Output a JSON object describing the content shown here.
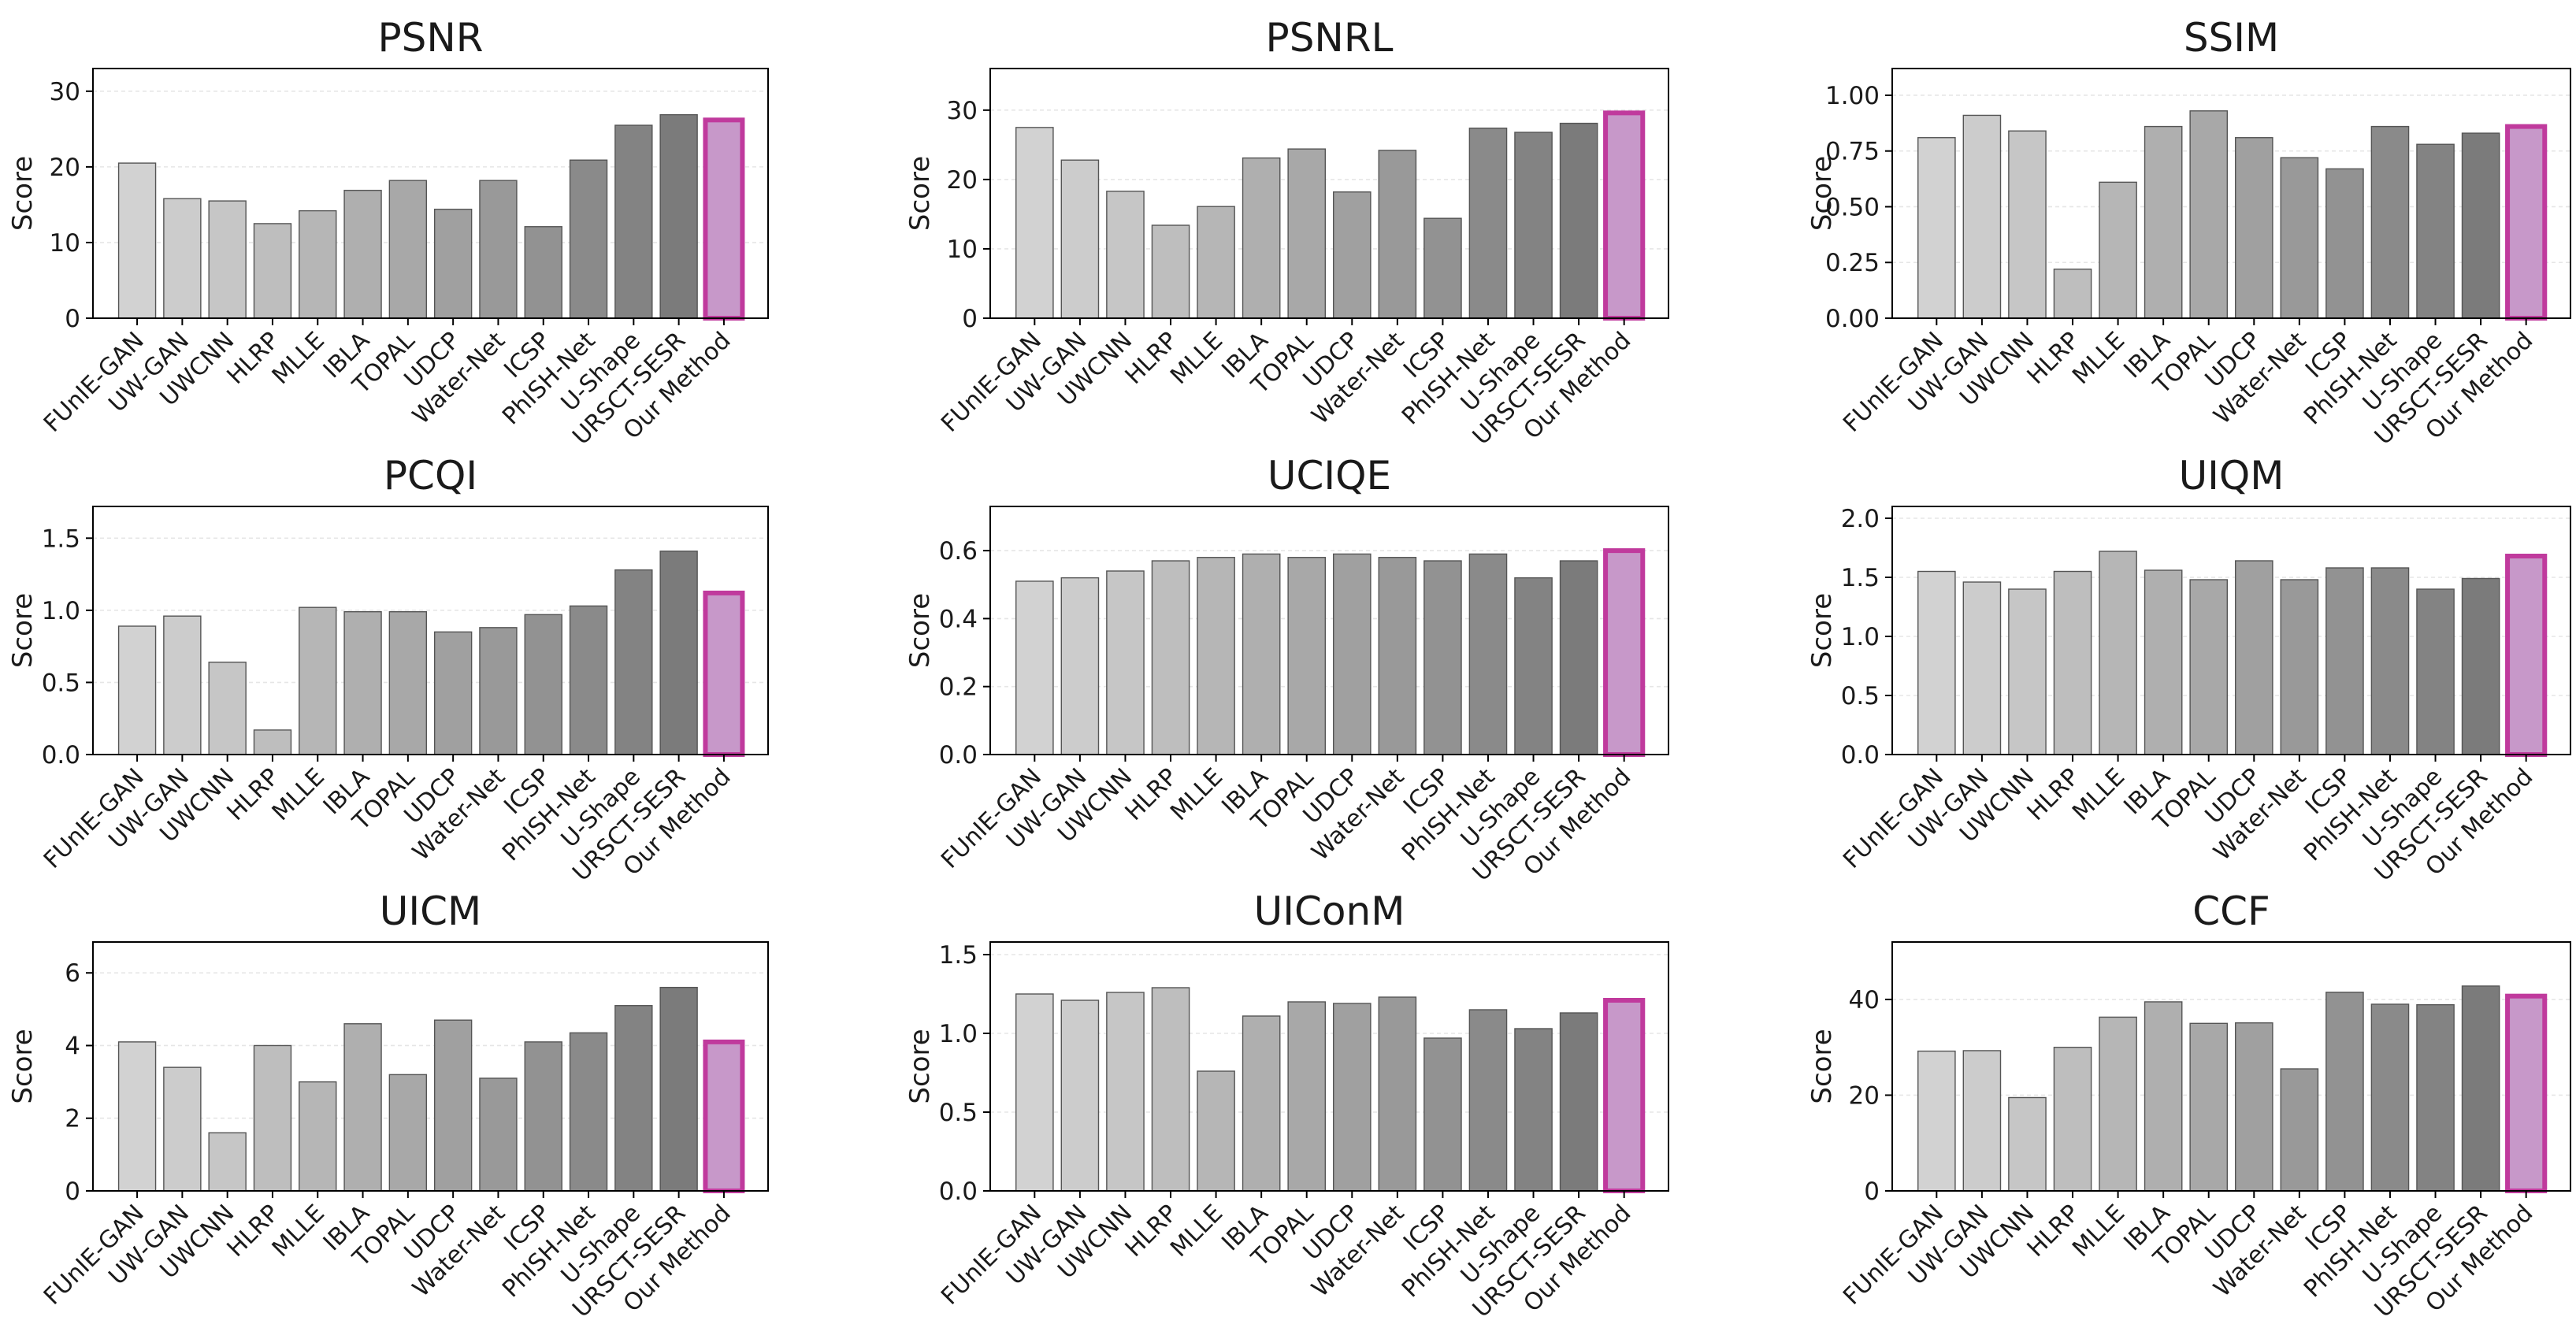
{
  "figure_title": "",
  "colors": {
    "highlight_fill": "#c798c9",
    "highlight_edge": "#c03a9d",
    "bar_edge": "#555555",
    "gray_ramp": [
      "#d2d2d2",
      "#cccccc",
      "#c6c6c6",
      "#bebebe",
      "#b6b6b6",
      "#afafaf",
      "#a8a8a8",
      "#a0a0a0",
      "#999999",
      "#929292",
      "#8a8a8a",
      "#838383",
      "#7b7b7b"
    ]
  },
  "chart_data": [
    {
      "type": "bar",
      "title": "PSNR",
      "ylabel": "Score",
      "xlabel": "",
      "ylim": [
        0,
        33
      ],
      "yticks": [
        0,
        10,
        20,
        30
      ],
      "categories": [
        "FUnIE-GAN",
        "UW-GAN",
        "UWCNN",
        "HLRP",
        "MLLE",
        "IBLA",
        "TOPAL",
        "UDCP",
        "Water-Net",
        "ICSP",
        "PhISH-Net",
        "U-Shape",
        "URSCT-SESR",
        "Our Method"
      ],
      "values": [
        20.5,
        15.8,
        15.5,
        12.5,
        14.2,
        16.9,
        18.2,
        14.4,
        18.2,
        12.1,
        20.9,
        25.5,
        26.9,
        26.2
      ],
      "highlight": "Our Method"
    },
    {
      "type": "bar",
      "title": "PSNRL",
      "ylabel": "Score",
      "xlabel": "",
      "ylim": [
        0,
        36
      ],
      "yticks": [
        0,
        10,
        20,
        30
      ],
      "categories": [
        "FUnIE-GAN",
        "UW-GAN",
        "UWCNN",
        "HLRP",
        "MLLE",
        "IBLA",
        "TOPAL",
        "UDCP",
        "Water-Net",
        "ICSP",
        "PhISH-Net",
        "U-Shape",
        "URSCT-SESR",
        "Our Method"
      ],
      "values": [
        27.5,
        22.8,
        18.3,
        13.4,
        16.1,
        23.1,
        24.4,
        18.2,
        24.2,
        14.4,
        27.4,
        26.8,
        28.1,
        29.6
      ],
      "highlight": "Our Method"
    },
    {
      "type": "bar",
      "title": "SSIM",
      "ylabel": "Score",
      "xlabel": "",
      "ylim": [
        0,
        1.12
      ],
      "yticks": [
        "0.00",
        "0.25",
        "0.50",
        "0.75",
        "1.00"
      ],
      "categories": [
        "FUnIE-GAN",
        "UW-GAN",
        "UWCNN",
        "HLRP",
        "MLLE",
        "IBLA",
        "TOPAL",
        "UDCP",
        "Water-Net",
        "ICSP",
        "PhISH-Net",
        "U-Shape",
        "URSCT-SESR",
        "Our Method"
      ],
      "values": [
        0.81,
        0.91,
        0.84,
        0.22,
        0.61,
        0.86,
        0.93,
        0.81,
        0.72,
        0.67,
        0.86,
        0.78,
        0.83,
        0.86
      ],
      "highlight": "Our Method"
    },
    {
      "type": "bar",
      "title": "PCQI",
      "ylabel": "Score",
      "xlabel": "",
      "ylim": [
        0,
        1.72
      ],
      "yticks": [
        "0.0",
        "0.5",
        "1.0",
        "1.5"
      ],
      "categories": [
        "FUnIE-GAN",
        "UW-GAN",
        "UWCNN",
        "HLRP",
        "MLLE",
        "IBLA",
        "TOPAL",
        "UDCP",
        "Water-Net",
        "ICSP",
        "PhISH-Net",
        "U-Shape",
        "URSCT-SESR",
        "Our Method"
      ],
      "values": [
        0.89,
        0.96,
        0.64,
        0.17,
        1.02,
        0.99,
        0.99,
        0.85,
        0.88,
        0.97,
        1.03,
        1.28,
        1.41,
        1.12
      ],
      "highlight": "Our Method"
    },
    {
      "type": "bar",
      "title": "UCIQE",
      "ylabel": "Score",
      "xlabel": "",
      "ylim": [
        0,
        0.73
      ],
      "yticks": [
        "0.0",
        "0.2",
        "0.4",
        "0.6"
      ],
      "categories": [
        "FUnIE-GAN",
        "UW-GAN",
        "UWCNN",
        "HLRP",
        "MLLE",
        "IBLA",
        "TOPAL",
        "UDCP",
        "Water-Net",
        "ICSP",
        "PhISH-Net",
        "U-Shape",
        "URSCT-SESR",
        "Our Method"
      ],
      "values": [
        0.51,
        0.52,
        0.54,
        0.57,
        0.58,
        0.59,
        0.58,
        0.59,
        0.58,
        0.57,
        0.59,
        0.52,
        0.57,
        0.6
      ],
      "highlight": "Our Method"
    },
    {
      "type": "bar",
      "title": "UIQM",
      "ylabel": "Score",
      "xlabel": "",
      "ylim": [
        0,
        2.1
      ],
      "yticks": [
        "0.0",
        "0.5",
        "1.0",
        "1.5",
        "2.0"
      ],
      "categories": [
        "FUnIE-GAN",
        "UW-GAN",
        "UWCNN",
        "HLRP",
        "MLLE",
        "IBLA",
        "TOPAL",
        "UDCP",
        "Water-Net",
        "ICSP",
        "PhISH-Net",
        "U-Shape",
        "URSCT-SESR",
        "Our Method"
      ],
      "values": [
        1.55,
        1.46,
        1.4,
        1.55,
        1.72,
        1.56,
        1.48,
        1.64,
        1.48,
        1.58,
        1.58,
        1.4,
        1.49,
        1.68
      ],
      "highlight": "Our Method"
    },
    {
      "type": "bar",
      "title": "UICM",
      "ylabel": "Score",
      "xlabel": "",
      "ylim": [
        0,
        6.85
      ],
      "yticks": [
        0,
        2,
        4,
        6
      ],
      "categories": [
        "FUnIE-GAN",
        "UW-GAN",
        "UWCNN",
        "HLRP",
        "MLLE",
        "IBLA",
        "TOPAL",
        "UDCP",
        "Water-Net",
        "ICSP",
        "PhISH-Net",
        "U-Shape",
        "URSCT-SESR",
        "Our Method"
      ],
      "values": [
        4.1,
        3.4,
        1.6,
        4.0,
        3.0,
        4.6,
        3.2,
        4.7,
        3.1,
        4.1,
        4.35,
        5.1,
        5.6,
        4.1
      ],
      "highlight": "Our Method"
    },
    {
      "type": "bar",
      "title": "UIConM",
      "ylabel": "Score",
      "xlabel": "",
      "ylim": [
        0,
        1.58
      ],
      "yticks": [
        "0.0",
        "0.5",
        "1.0",
        "1.5"
      ],
      "categories": [
        "FUnIE-GAN",
        "UW-GAN",
        "UWCNN",
        "HLRP",
        "MLLE",
        "IBLA",
        "TOPAL",
        "UDCP",
        "Water-Net",
        "ICSP",
        "PhISH-Net",
        "U-Shape",
        "URSCT-SESR",
        "Our Method"
      ],
      "values": [
        1.25,
        1.21,
        1.26,
        1.29,
        0.76,
        1.11,
        1.2,
        1.19,
        1.23,
        0.97,
        1.15,
        1.03,
        1.13,
        1.21
      ],
      "highlight": "Our Method"
    },
    {
      "type": "bar",
      "title": "CCF",
      "ylabel": "Score",
      "xlabel": "",
      "ylim": [
        0,
        52
      ],
      "yticks": [
        0,
        20,
        40
      ],
      "categories": [
        "FUnIE-GAN",
        "UW-GAN",
        "UWCNN",
        "HLRP",
        "MLLE",
        "IBLA",
        "TOPAL",
        "UDCP",
        "Water-Net",
        "ICSP",
        "PhISH-Net",
        "U-Shape",
        "URSCT-SESR",
        "Our Method"
      ],
      "values": [
        29.2,
        29.3,
        19.5,
        30.0,
        36.3,
        39.5,
        35.0,
        35.1,
        25.5,
        41.5,
        39.0,
        38.9,
        42.8,
        40.7
      ],
      "highlight": "Our Method"
    }
  ]
}
